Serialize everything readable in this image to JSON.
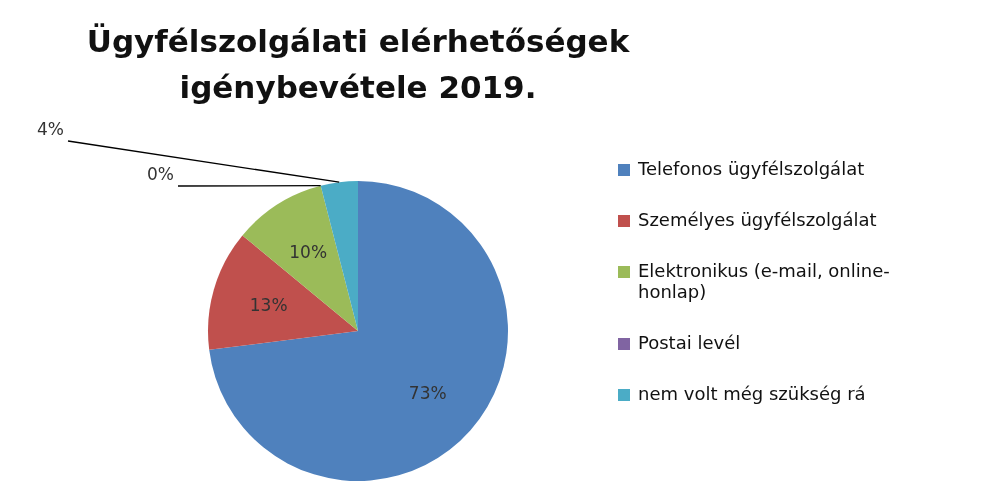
{
  "chart_data": {
    "type": "pie",
    "title": "Ügyfélszolgálati elérhetőségek igénybevétele 2019.",
    "categories": [
      "Telefonos ügyfélszolgálat",
      "Személyes ügyfélszolgálat",
      "Elektronikus (e-mail, online-honlap)",
      "Postai levél",
      "nem volt még szükség rá"
    ],
    "values": [
      73,
      13,
      10,
      0,
      4
    ],
    "colors": [
      "#4f81bd",
      "#c0504d",
      "#9bbb59",
      "#8064a2",
      "#4bacc6"
    ],
    "value_labels": [
      "73%",
      "13%",
      "10%",
      "0%",
      "4%"
    ],
    "legend": "right"
  }
}
